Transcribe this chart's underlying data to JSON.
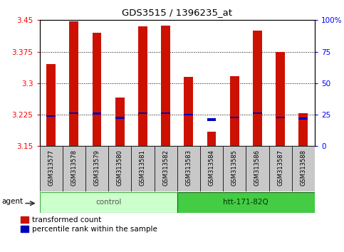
{
  "title": "GDS3515 / 1396235_at",
  "samples": [
    "GSM313577",
    "GSM313578",
    "GSM313579",
    "GSM313580",
    "GSM313581",
    "GSM313582",
    "GSM313583",
    "GSM313584",
    "GSM313585",
    "GSM313586",
    "GSM313587",
    "GSM313588"
  ],
  "red_values": [
    3.345,
    3.448,
    3.42,
    3.265,
    3.435,
    3.437,
    3.315,
    3.185,
    3.316,
    3.425,
    3.375,
    3.228
  ],
  "blue_values": [
    3.222,
    3.228,
    3.228,
    3.218,
    3.228,
    3.228,
    3.225,
    3.213,
    3.218,
    3.228,
    3.218,
    3.215
  ],
  "blue_heights": [
    0.004,
    0.004,
    0.005,
    0.005,
    0.004,
    0.004,
    0.004,
    0.006,
    0.004,
    0.004,
    0.004,
    0.005
  ],
  "base": 3.15,
  "ymin": 3.15,
  "ymax": 3.45,
  "yticks": [
    3.15,
    3.225,
    3.3,
    3.375,
    3.45
  ],
  "ytick_labels": [
    "3.15",
    "3.225",
    "3.3",
    "3.375",
    "3.45"
  ],
  "right_yticks_pct": [
    0,
    25,
    50,
    75,
    100
  ],
  "right_ytick_labels": [
    "0",
    "25",
    "50",
    "75",
    "100%"
  ],
  "bar_width": 0.4,
  "red_color": "#cc1100",
  "blue_color": "#0000bb",
  "groups": [
    {
      "label": "control",
      "start": 0,
      "end": 5,
      "facecolor": "#ccffcc",
      "edgecolor": "#44aa44"
    },
    {
      "label": "htt-171-82Q",
      "start": 6,
      "end": 11,
      "facecolor": "#44cc44",
      "edgecolor": "#116611"
    }
  ],
  "agent_label": "agent",
  "legend_red": "transformed count",
  "legend_blue": "percentile rank within the sample",
  "tick_area_color": "#c8c8c8",
  "control_text_color": "#555555",
  "htt_text_color": "#003300",
  "grid_yticks": [
    3.225,
    3.3,
    3.375
  ]
}
